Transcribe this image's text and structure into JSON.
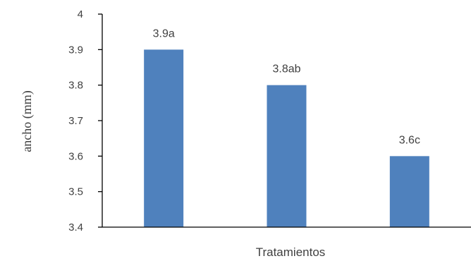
{
  "chart_data": {
    "type": "bar",
    "categories": [
      "",
      "",
      ""
    ],
    "values": [
      3.9,
      3.8,
      3.6
    ],
    "data_labels": [
      "3.9a",
      "3.8ab",
      "3.6c"
    ],
    "title": "",
    "xlabel": "Tratamientos",
    "ylabel": "ancho (mm)",
    "ylim": [
      3.4,
      4.0
    ],
    "yticks": [
      "3.4",
      "3.5",
      "3.6",
      "3.7",
      "3.8",
      "3.9",
      "4"
    ],
    "grid": false,
    "legend": "none",
    "bar_color": "#4f81bd"
  }
}
